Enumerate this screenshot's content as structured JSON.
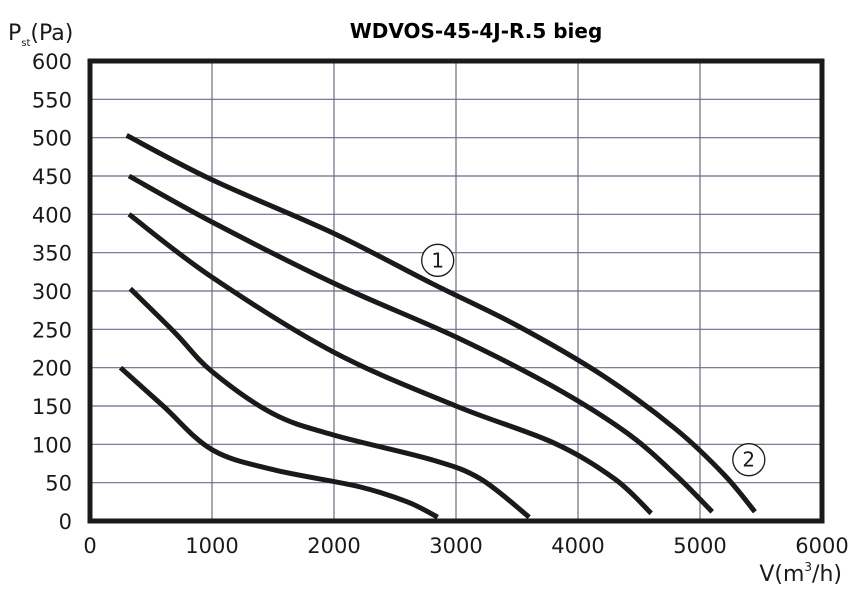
{
  "chart_data": {
    "type": "line",
    "title": "WDVOS-45-4J-R.5 bieg",
    "ylabel": {
      "base": "P",
      "sub": "st",
      "unit": "(Pa)"
    },
    "xlabel": {
      "prefix": "V(m",
      "sup": "3",
      "suffix": "/h)"
    },
    "xlim": [
      0,
      6000
    ],
    "ylim": [
      0,
      600
    ],
    "xticks": [
      0,
      1000,
      2000,
      3000,
      4000,
      5000,
      6000
    ],
    "yticks": [
      0,
      50,
      100,
      150,
      200,
      250,
      300,
      350,
      400,
      450,
      500,
      550,
      600
    ],
    "xtick_labels": [
      "0",
      "1000",
      "2000",
      "3000",
      "4000",
      "5000",
      "6000"
    ],
    "ytick_labels": [
      "0",
      "50",
      "100",
      "150",
      "200",
      "250",
      "300",
      "350",
      "400",
      "450",
      "500",
      "550",
      "600"
    ],
    "grid": true,
    "series": [
      {
        "points": [
          [
            300,
            503
          ],
          [
            1000,
            445
          ],
          [
            2000,
            375
          ],
          [
            2800,
            310
          ],
          [
            3500,
            255
          ],
          [
            4200,
            190
          ],
          [
            4800,
            120
          ],
          [
            5200,
            60
          ],
          [
            5450,
            12
          ]
        ]
      },
      {
        "points": [
          [
            320,
            450
          ],
          [
            1000,
            390
          ],
          [
            2000,
            310
          ],
          [
            3000,
            240
          ],
          [
            3800,
            175
          ],
          [
            4400,
            115
          ],
          [
            4800,
            60
          ],
          [
            5100,
            12
          ]
        ]
      },
      {
        "points": [
          [
            320,
            400
          ],
          [
            1000,
            318
          ],
          [
            2000,
            220
          ],
          [
            3000,
            150
          ],
          [
            3800,
            102
          ],
          [
            4300,
            55
          ],
          [
            4600,
            10
          ]
        ]
      },
      {
        "points": [
          [
            330,
            303
          ],
          [
            700,
            245
          ],
          [
            1000,
            195
          ],
          [
            1500,
            140
          ],
          [
            2000,
            112
          ],
          [
            2800,
            80
          ],
          [
            3200,
            55
          ],
          [
            3600,
            5
          ]
        ]
      },
      {
        "points": [
          [
            250,
            200
          ],
          [
            600,
            150
          ],
          [
            1000,
            93
          ],
          [
            1500,
            67
          ],
          [
            2200,
            45
          ],
          [
            2600,
            25
          ],
          [
            2850,
            5
          ]
        ]
      }
    ],
    "annotations": [
      {
        "label": "1",
        "x": 2850,
        "y": 340
      },
      {
        "label": "2",
        "x": 5400,
        "y": 80
      }
    ]
  }
}
